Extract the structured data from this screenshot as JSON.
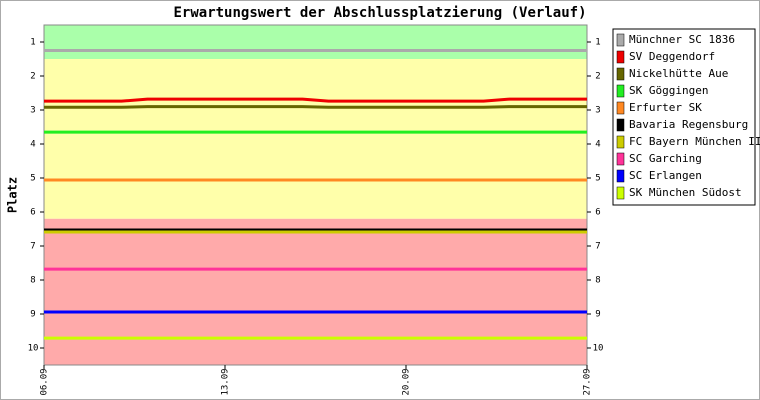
{
  "chart_data": {
    "type": "line",
    "title": "Erwartungswert der Abschlussplatzierung (Verlauf)",
    "y_label": "Platz",
    "categories": [
      "06.09",
      null,
      null,
      null,
      null,
      null,
      null,
      "13.09",
      null,
      null,
      null,
      null,
      null,
      null,
      "20.09",
      null,
      null,
      null,
      null,
      null,
      null,
      "27.09"
    ],
    "ylim": [
      10.5,
      0.5
    ],
    "yticks": [
      1,
      2,
      3,
      4,
      5,
      6,
      7,
      8,
      9,
      10
    ],
    "y_inverted": true,
    "bands": [
      {
        "from": 0.5,
        "to": 1.5,
        "color": "#aaffaa"
      },
      {
        "from": 1.5,
        "to": 6.2,
        "color": "#ffffaa"
      },
      {
        "from": 6.2,
        "to": 10.5,
        "color": "#ffaaaa"
      }
    ],
    "legend": "right",
    "series": [
      {
        "name": "Münchner SC 1836",
        "color": "#aaaaaa",
        "values": [
          1.25,
          1.25,
          1.25,
          1.25,
          1.25,
          1.25,
          1.25,
          1.25,
          1.25,
          1.25,
          1.25,
          1.25,
          1.25,
          1.25,
          1.25,
          1.25,
          1.25,
          1.25,
          1.25,
          1.25,
          1.25,
          1.25
        ]
      },
      {
        "name": "SV Deggendorf",
        "color": "#ee0000",
        "values": [
          2.74,
          2.74,
          2.74,
          2.74,
          2.68,
          2.68,
          2.68,
          2.68,
          2.68,
          2.68,
          2.68,
          2.74,
          2.74,
          2.74,
          2.74,
          2.74,
          2.74,
          2.74,
          2.68,
          2.68,
          2.68,
          2.68
        ]
      },
      {
        "name": "Nickelhütte Aue",
        "color": "#666600",
        "values": [
          2.92,
          2.92,
          2.92,
          2.92,
          2.9,
          2.9,
          2.9,
          2.9,
          2.9,
          2.9,
          2.9,
          2.92,
          2.92,
          2.92,
          2.92,
          2.92,
          2.92,
          2.92,
          2.9,
          2.9,
          2.9,
          2.9
        ]
      },
      {
        "name": "SK Göggingen",
        "color": "#22ee22",
        "values": [
          3.65,
          3.65,
          3.65,
          3.65,
          3.65,
          3.65,
          3.65,
          3.65,
          3.65,
          3.65,
          3.65,
          3.65,
          3.65,
          3.65,
          3.65,
          3.65,
          3.65,
          3.65,
          3.65,
          3.65,
          3.65,
          3.65
        ]
      },
      {
        "name": "Erfurter SK",
        "color": "#ff8822",
        "values": [
          5.06,
          5.06,
          5.06,
          5.06,
          5.06,
          5.06,
          5.06,
          5.06,
          5.06,
          5.06,
          5.06,
          5.06,
          5.06,
          5.06,
          5.06,
          5.06,
          5.06,
          5.06,
          5.06,
          5.06,
          5.06,
          5.06
        ]
      },
      {
        "name": "Bavaria Regensburg",
        "color": "#000000",
        "values": [
          6.53,
          6.53,
          6.53,
          6.53,
          6.53,
          6.53,
          6.53,
          6.53,
          6.53,
          6.53,
          6.53,
          6.53,
          6.53,
          6.53,
          6.53,
          6.53,
          6.53,
          6.53,
          6.53,
          6.53,
          6.53,
          6.53
        ]
      },
      {
        "name": "FC Bayern München II",
        "color": "#cccc00",
        "values": [
          6.59,
          6.59,
          6.59,
          6.59,
          6.59,
          6.59,
          6.59,
          6.59,
          6.59,
          6.59,
          6.59,
          6.59,
          6.59,
          6.59,
          6.59,
          6.59,
          6.59,
          6.59,
          6.59,
          6.59,
          6.59,
          6.59
        ]
      },
      {
        "name": "SC Garching",
        "color": "#ff3399",
        "values": [
          7.68,
          7.68,
          7.68,
          7.68,
          7.68,
          7.68,
          7.68,
          7.68,
          7.68,
          7.68,
          7.68,
          7.68,
          7.68,
          7.68,
          7.68,
          7.68,
          7.68,
          7.68,
          7.68,
          7.68,
          7.68,
          7.68
        ]
      },
      {
        "name": "SC Erlangen",
        "color": "#0000ff",
        "values": [
          8.94,
          8.94,
          8.94,
          8.94,
          8.94,
          8.94,
          8.94,
          8.94,
          8.94,
          8.94,
          8.94,
          8.94,
          8.94,
          8.94,
          8.94,
          8.94,
          8.94,
          8.94,
          8.94,
          8.94,
          8.94,
          8.94
        ]
      },
      {
        "name": "SK München Südost",
        "color": "#ccff00",
        "values": [
          9.71,
          9.71,
          9.71,
          9.71,
          9.71,
          9.71,
          9.71,
          9.71,
          9.71,
          9.71,
          9.71,
          9.71,
          9.71,
          9.71,
          9.71,
          9.71,
          9.71,
          9.71,
          9.71,
          9.71,
          9.71,
          9.71
        ]
      }
    ]
  }
}
